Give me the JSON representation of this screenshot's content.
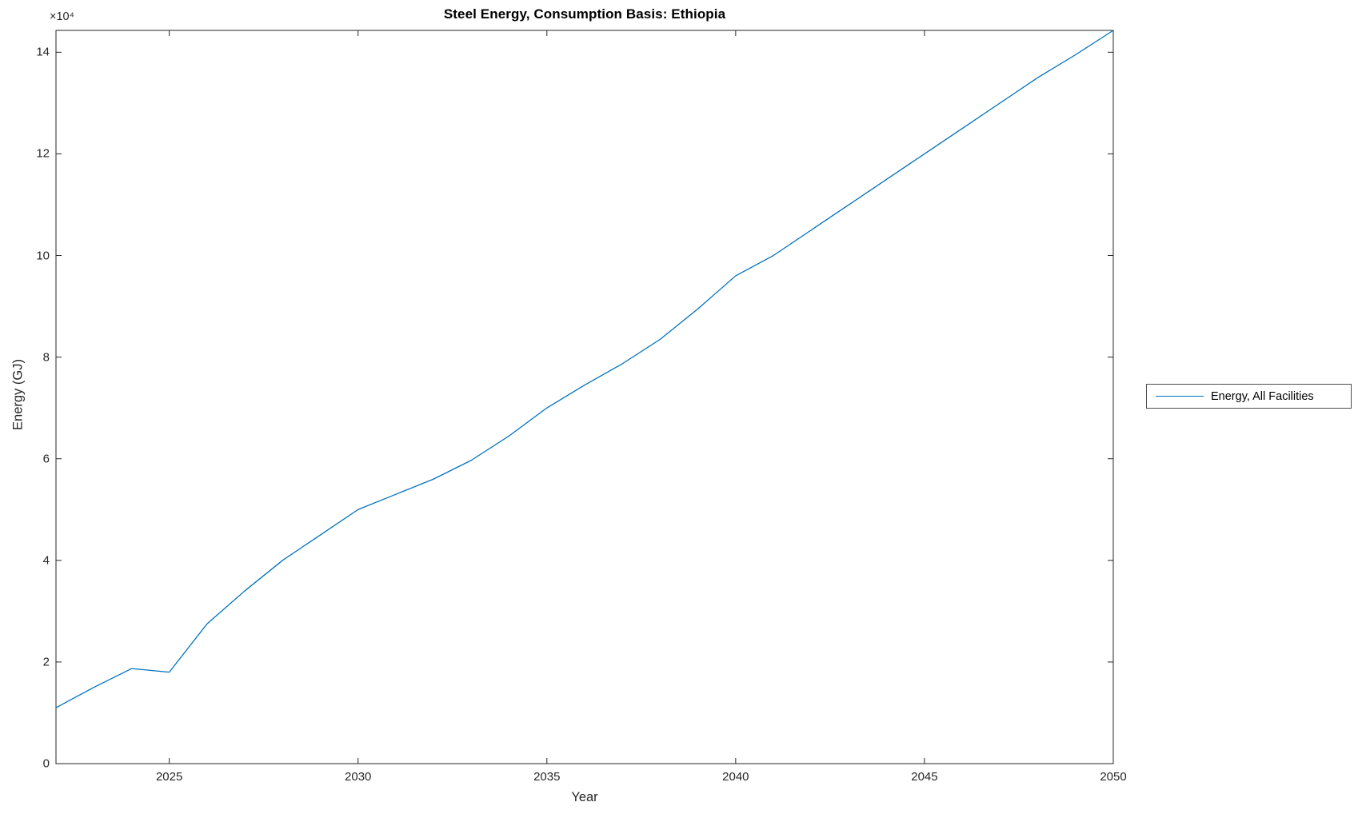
{
  "header": {
    "title": "Steel Energy, Consumption Basis: Ethiopia"
  },
  "axes": {
    "xlabel": "Year",
    "ylabel": "Energy (GJ)",
    "y_multiplier": "×10⁴"
  },
  "legend": {
    "label": "Energy, All Facilities",
    "line_color": "#0072BD"
  },
  "colors": {
    "series_blue": "#0072BD",
    "axis": "#262626",
    "background": "#ffffff"
  },
  "chart_data": {
    "type": "line",
    "title": "Steel Energy, Consumption Basis: Ethiopia",
    "xlabel": "Year",
    "ylabel": "Energy (GJ)",
    "y_unit_multiplier": 10000,
    "y_multiplier_label": "×10⁴",
    "xlim": [
      2022,
      2050
    ],
    "ylim": [
      0,
      14.43
    ],
    "x_ticks": [
      2025,
      2030,
      2035,
      2040,
      2045,
      2050
    ],
    "y_ticks": [
      0,
      2,
      4,
      6,
      8,
      10,
      12,
      14
    ],
    "grid": false,
    "legend_position": "right-outside",
    "series": [
      {
        "name": "Energy, All Facilities",
        "color": "#0072BD",
        "x": [
          2022,
          2023,
          2024,
          2025,
          2026,
          2027,
          2028,
          2029,
          2030,
          2031,
          2032,
          2033,
          2034,
          2035,
          2036,
          2037,
          2038,
          2039,
          2040,
          2041,
          2042,
          2043,
          2044,
          2045,
          2046,
          2047,
          2048,
          2049,
          2050
        ],
        "y": [
          1.1,
          1.5,
          1.87,
          1.8,
          2.75,
          3.4,
          4.0,
          4.5,
          5.0,
          5.3,
          5.6,
          5.97,
          6.45,
          7.0,
          7.45,
          7.87,
          8.35,
          8.95,
          9.6,
          10.0,
          10.5,
          11.0,
          11.5,
          12.0,
          12.5,
          13.0,
          13.5,
          13.95,
          14.43
        ]
      }
    ]
  }
}
